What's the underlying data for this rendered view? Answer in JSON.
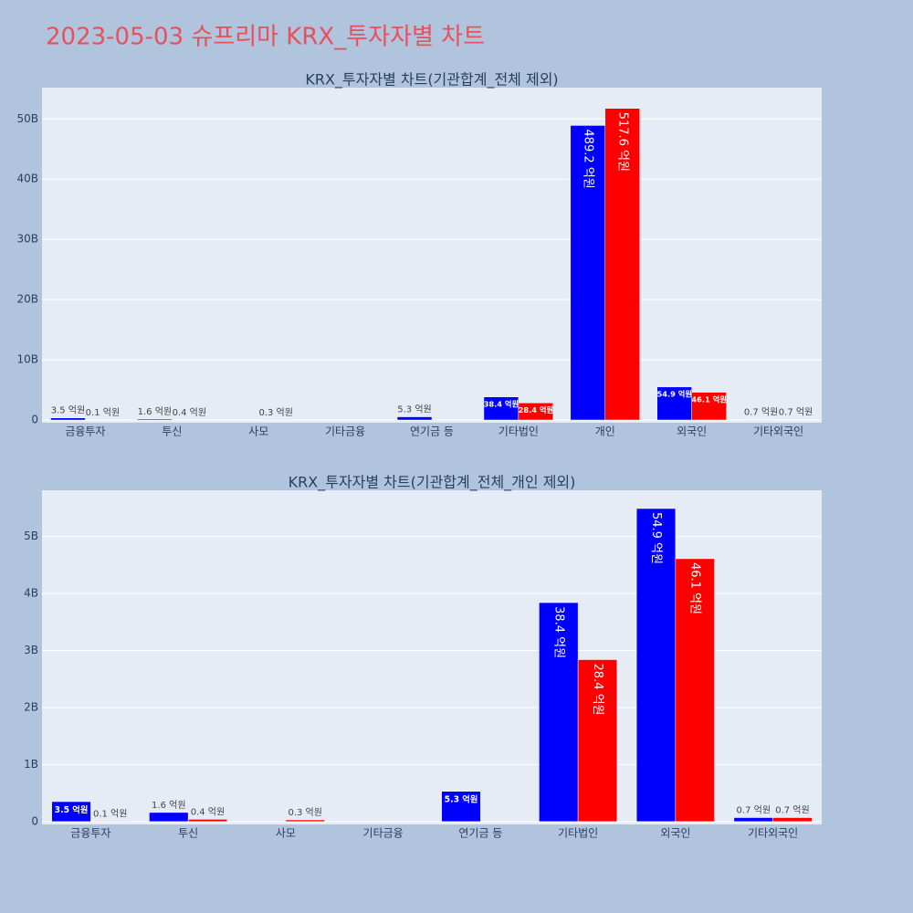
{
  "title": "2023-05-03 슈프리마 KRX_투자자별 차트",
  "chart_data": [
    {
      "type": "bar",
      "title": "KRX_투자자별 차트(기관합계_전체 제외)",
      "categories": [
        "금융투자",
        "투신",
        "사모",
        "기타금융",
        "연기금 등",
        "기타법인",
        "개인",
        "외국인",
        "기타외국인"
      ],
      "series": [
        {
          "color": "blue",
          "values": [
            0.35,
            0.16,
            null,
            null,
            0.53,
            3.84,
            48.92,
            5.49,
            0.07
          ],
          "value_labels": [
            "3.5 억원",
            "1.6 억원",
            null,
            null,
            "5.3 억원",
            "38.4 억원",
            "489.2 억원",
            "54.9 억원",
            "0.7 억원"
          ]
        },
        {
          "color": "red",
          "values": [
            0.01,
            0.04,
            0.03,
            null,
            null,
            2.84,
            51.76,
            4.61,
            0.07
          ],
          "value_labels": [
            "0.1 억원",
            "0.4 억원",
            "0.3 억원",
            null,
            null,
            "28.4 억원",
            "517.6 억원",
            "46.1 억원",
            "0.7 억원"
          ]
        }
      ],
      "ylim": [
        -0.45,
        55.2
      ],
      "yticks": [
        0,
        {
          "value": 10,
          "label": "10B"
        },
        {
          "value": 20,
          "label": "20B"
        },
        {
          "value": 30,
          "label": "30B"
        },
        {
          "value": 40,
          "label": "40B"
        },
        {
          "value": 50,
          "label": "50B"
        }
      ],
      "grid": true
    },
    {
      "type": "bar",
      "title": "KRX_투자자별 차트(기관합계_전체_개인 제외)",
      "categories": [
        "금융투자",
        "투신",
        "사모",
        "기타금융",
        "연기금 등",
        "기타법인",
        "외국인",
        "기타외국인"
      ],
      "series": [
        {
          "color": "blue",
          "values": [
            0.35,
            0.16,
            null,
            null,
            0.53,
            3.84,
            5.49,
            0.07
          ],
          "value_labels": [
            "3.5 억원",
            "1.6 억원",
            null,
            null,
            "5.3 억원",
            "38.4 억원",
            "54.9 억원",
            "0.7 억원"
          ]
        },
        {
          "color": "red",
          "values": [
            0.01,
            0.04,
            0.03,
            null,
            null,
            2.84,
            4.61,
            0.07
          ],
          "value_labels": [
            "0.1 억원",
            "0.4 억원",
            "0.3 억원",
            null,
            null,
            "28.4 억원",
            "46.1 억원",
            "0.7 억원"
          ]
        }
      ],
      "ylim": [
        -0.05,
        5.81
      ],
      "yticks": [
        0,
        {
          "value": 1,
          "label": "1B"
        },
        {
          "value": 2,
          "label": "2B"
        },
        {
          "value": 3,
          "label": "3B"
        },
        {
          "value": 4,
          "label": "4B"
        },
        {
          "value": 5,
          "label": "5B"
        }
      ],
      "grid": true
    }
  ]
}
